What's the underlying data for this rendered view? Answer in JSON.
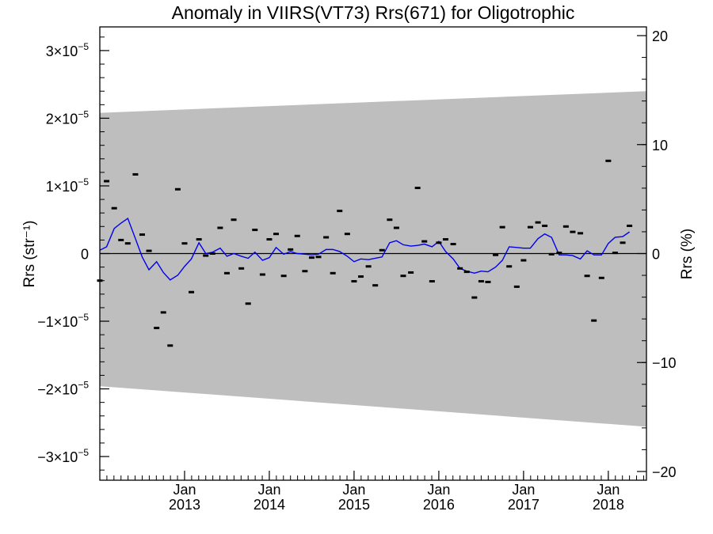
{
  "chart_data": {
    "type": "line",
    "title": "Anomaly in VIIRS(VT73) Rrs(671) for Oligotrophic",
    "ylabel": "Rrs (str⁻¹)",
    "y2label": "Rrs (%)",
    "ylim": [
      -3.35e-05,
      3.35e-05
    ],
    "y2lim": [
      -20.8,
      20.8
    ],
    "yticks": [
      {
        "value": 3e-05,
        "mantissa": "3",
        "exp": "−5"
      },
      {
        "value": 2e-05,
        "mantissa": "2",
        "exp": "−5"
      },
      {
        "value": 1e-05,
        "mantissa": "1",
        "exp": "−5"
      },
      {
        "value": 0,
        "mantissa": "0",
        "exp": ""
      },
      {
        "value": -1e-05,
        "mantissa": "−1",
        "exp": "−5"
      },
      {
        "value": -2e-05,
        "mantissa": "−2",
        "exp": "−5"
      },
      {
        "value": -3e-05,
        "mantissa": "−3",
        "exp": "−5"
      }
    ],
    "y2ticks": [
      {
        "value": 20,
        "label": "20"
      },
      {
        "value": 10,
        "label": "10"
      },
      {
        "value": 0,
        "label": "0"
      },
      {
        "value": -10,
        "label": "−10"
      },
      {
        "value": -20,
        "label": "−20"
      }
    ],
    "xlim": [
      2012.0,
      2018.45
    ],
    "xticks": [
      {
        "value": 2013.0,
        "month": "Jan",
        "year": "2013"
      },
      {
        "value": 2014.0,
        "month": "Jan",
        "year": "2014"
      },
      {
        "value": 2015.0,
        "month": "Jan",
        "year": "2015"
      },
      {
        "value": 2016.0,
        "month": "Jan",
        "year": "2016"
      },
      {
        "value": 2017.0,
        "month": "Jan",
        "year": "2017"
      },
      {
        "value": 2018.0,
        "month": "Jan",
        "year": "2018"
      }
    ],
    "band": {
      "upper": [
        [
          2012.0,
          2.08e-05
        ],
        [
          2018.45,
          2.4e-05
        ]
      ],
      "lower": [
        [
          2012.0,
          -1.96e-05
        ],
        [
          2018.45,
          -2.56e-05
        ]
      ],
      "color": "#bebebe"
    },
    "points": [
      [
        2012.0,
        -4e-06
      ],
      [
        2012.08,
        1.07e-05
      ],
      [
        2012.17,
        6.7e-06
      ],
      [
        2012.25,
        2e-06
      ],
      [
        2012.33,
        1.5e-06
      ],
      [
        2012.42,
        1.17e-05
      ],
      [
        2012.5,
        2.8e-06
      ],
      [
        2012.58,
        4e-07
      ],
      [
        2012.67,
        -1.1e-05
      ],
      [
        2012.75,
        -8.7e-06
      ],
      [
        2012.83,
        -1.36e-05
      ],
      [
        2012.92,
        9.5e-06
      ],
      [
        2013.0,
        1.5e-06
      ],
      [
        2013.08,
        -5.7e-06
      ],
      [
        2013.17,
        2.1e-06
      ],
      [
        2013.25,
        -3e-07
      ],
      [
        2013.33,
        0.0
      ],
      [
        2013.42,
        3.8e-06
      ],
      [
        2013.5,
        -2.9e-06
      ],
      [
        2013.58,
        5e-06
      ],
      [
        2013.67,
        -2.2e-06
      ],
      [
        2013.75,
        -7.4e-06
      ],
      [
        2013.83,
        3.5e-06
      ],
      [
        2013.92,
        -3.1e-06
      ],
      [
        2014.0,
        2.1e-06
      ],
      [
        2014.08,
        2.9e-06
      ],
      [
        2014.17,
        -3.3e-06
      ],
      [
        2014.25,
        6e-07
      ],
      [
        2014.33,
        2.6e-06
      ],
      [
        2014.42,
        -2.6e-06
      ],
      [
        2014.5,
        -6e-07
      ],
      [
        2014.58,
        -5e-07
      ],
      [
        2014.67,
        2.4e-06
      ],
      [
        2014.75,
        -2.9e-06
      ],
      [
        2014.83,
        6.3e-06
      ],
      [
        2014.92,
        2.9e-06
      ],
      [
        2015.0,
        -4.1e-06
      ],
      [
        2015.08,
        -3.4e-06
      ],
      [
        2015.17,
        -1.9e-06
      ],
      [
        2015.25,
        -4.7e-06
      ],
      [
        2015.33,
        5e-07
      ],
      [
        2015.42,
        5e-06
      ],
      [
        2015.5,
        3.8e-06
      ],
      [
        2015.58,
        -3.3e-06
      ],
      [
        2015.67,
        -2.8e-06
      ],
      [
        2015.75,
        9.7e-06
      ],
      [
        2015.83,
        1.8e-06
      ],
      [
        2015.92,
        -4.1e-06
      ],
      [
        2016.0,
        1.6e-06
      ],
      [
        2016.08,
        2.1e-06
      ],
      [
        2016.17,
        1.4e-06
      ],
      [
        2016.25,
        -2.2e-06
      ],
      [
        2016.33,
        -2.7e-06
      ],
      [
        2016.42,
        -6.5e-06
      ],
      [
        2016.5,
        -4.1e-06
      ],
      [
        2016.58,
        -4.2e-06
      ],
      [
        2016.67,
        -2e-07
      ],
      [
        2016.75,
        3.9e-06
      ],
      [
        2016.83,
        -1.9e-06
      ],
      [
        2016.92,
        -4.9e-06
      ],
      [
        2017.0,
        -1e-06
      ],
      [
        2017.08,
        3.9e-06
      ],
      [
        2017.17,
        4.6e-06
      ],
      [
        2017.25,
        4.1e-06
      ],
      [
        2017.33,
        -1e-07
      ],
      [
        2017.42,
        1e-07
      ],
      [
        2017.5,
        4e-06
      ],
      [
        2017.58,
        3.2e-06
      ],
      [
        2017.67,
        3e-06
      ],
      [
        2017.75,
        -3.3e-06
      ],
      [
        2017.83,
        -9.9e-06
      ],
      [
        2017.92,
        -3.6e-06
      ],
      [
        2018.0,
        1.37e-05
      ],
      [
        2018.08,
        1e-07
      ],
      [
        2018.17,
        1.6e-06
      ],
      [
        2018.25,
        4.1e-06
      ]
    ],
    "line": [
      [
        2012.0,
        5e-07
      ],
      [
        2012.08,
        1e-06
      ],
      [
        2012.17,
        3.7e-06
      ],
      [
        2012.25,
        4.5e-06
      ],
      [
        2012.33,
        5.2e-06
      ],
      [
        2012.42,
        2.2e-06
      ],
      [
        2012.5,
        -5e-07
      ],
      [
        2012.58,
        -2.4e-06
      ],
      [
        2012.67,
        -1.2e-06
      ],
      [
        2012.75,
        -2.8e-06
      ],
      [
        2012.83,
        -3.9e-06
      ],
      [
        2012.92,
        -3.2e-06
      ],
      [
        2013.0,
        -1.9e-06
      ],
      [
        2013.08,
        -8e-07
      ],
      [
        2013.17,
        1.6e-06
      ],
      [
        2013.25,
        0.0
      ],
      [
        2013.33,
        2e-07
      ],
      [
        2013.42,
        8e-07
      ],
      [
        2013.5,
        -4e-07
      ],
      [
        2013.58,
        0.0
      ],
      [
        2013.67,
        -4e-07
      ],
      [
        2013.75,
        -7e-07
      ],
      [
        2013.83,
        2e-07
      ],
      [
        2013.92,
        -1e-06
      ],
      [
        2014.0,
        -6e-07
      ],
      [
        2014.08,
        9e-07
      ],
      [
        2014.17,
        -1e-07
      ],
      [
        2014.25,
        3e-07
      ],
      [
        2014.33,
        0.0
      ],
      [
        2014.42,
        -1e-07
      ],
      [
        2014.5,
        -2e-07
      ],
      [
        2014.58,
        -1e-07
      ],
      [
        2014.67,
        6e-07
      ],
      [
        2014.75,
        6e-07
      ],
      [
        2014.83,
        3e-07
      ],
      [
        2014.92,
        -4e-07
      ],
      [
        2015.0,
        -1.2e-06
      ],
      [
        2015.08,
        -8e-07
      ],
      [
        2015.17,
        -9e-07
      ],
      [
        2015.25,
        -7e-07
      ],
      [
        2015.33,
        -5e-07
      ],
      [
        2015.42,
        1.6e-06
      ],
      [
        2015.5,
        1.9e-06
      ],
      [
        2015.58,
        1.3e-06
      ],
      [
        2015.67,
        1.1e-06
      ],
      [
        2015.75,
        1.2e-06
      ],
      [
        2015.83,
        1.4e-06
      ],
      [
        2015.92,
        1e-06
      ],
      [
        2016.0,
        1.8e-06
      ],
      [
        2016.08,
        3e-07
      ],
      [
        2016.17,
        -8e-07
      ],
      [
        2016.25,
        -2.2e-06
      ],
      [
        2016.33,
        -2.6e-06
      ],
      [
        2016.42,
        -2.9e-06
      ],
      [
        2016.5,
        -2.6e-06
      ],
      [
        2016.58,
        -2.7e-06
      ],
      [
        2016.67,
        -2e-06
      ],
      [
        2016.75,
        -1e-06
      ],
      [
        2016.83,
        1e-06
      ],
      [
        2016.92,
        9e-07
      ],
      [
        2017.0,
        8e-07
      ],
      [
        2017.08,
        8e-07
      ],
      [
        2017.17,
        2.2e-06
      ],
      [
        2017.25,
        2.9e-06
      ],
      [
        2017.33,
        2.4e-06
      ],
      [
        2017.42,
        -2e-07
      ],
      [
        2017.5,
        -2e-07
      ],
      [
        2017.58,
        -3e-07
      ],
      [
        2017.67,
        -8e-07
      ],
      [
        2017.75,
        4e-07
      ],
      [
        2017.83,
        -2e-07
      ],
      [
        2017.92,
        -2e-07
      ],
      [
        2018.0,
        1.5e-06
      ],
      [
        2018.08,
        2.4e-06
      ],
      [
        2018.17,
        2.5e-06
      ],
      [
        2018.25,
        3.2e-06
      ]
    ],
    "line_color": "#0000ee",
    "point_color": "#000000",
    "zero_line_color": "#000000"
  }
}
